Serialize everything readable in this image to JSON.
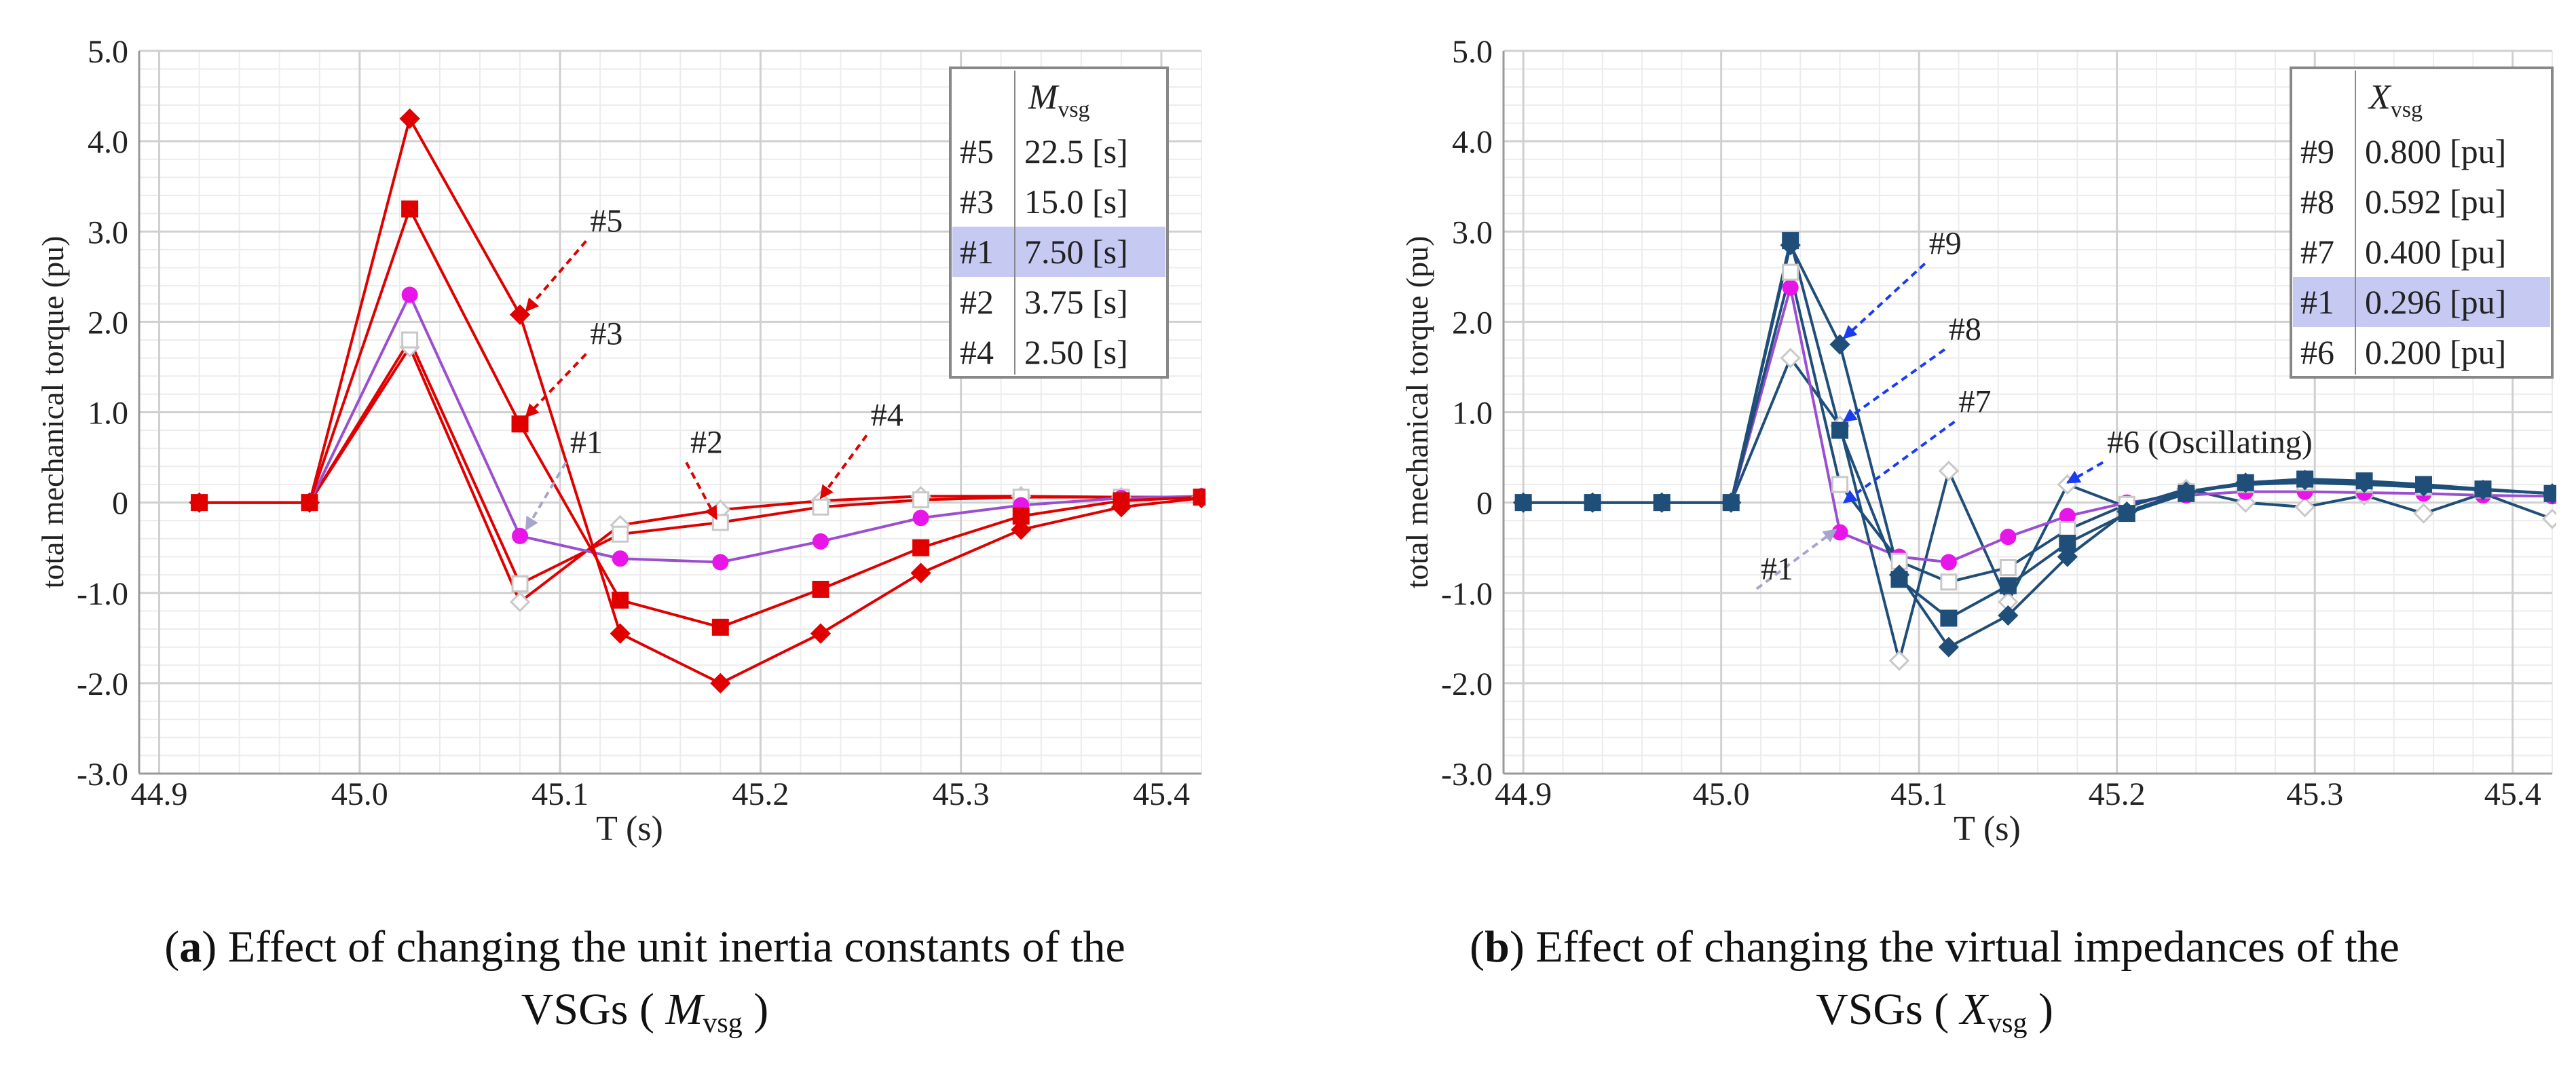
{
  "figure": {
    "panel_a": {
      "caption": {
        "letter": "a",
        "text": "Effect of changing the unit inertia constants of the",
        "line2_start": "VSGs (",
        "symbol": "M",
        "subscript": "vsg",
        "line2_end": ")"
      },
      "chart_data": {
        "type": "line",
        "xlabel": "T (s)",
        "ylabel": "total mechanical torque (pu)",
        "xlim": [
          44.89,
          45.42
        ],
        "ylim": [
          -3.0,
          5.0
        ],
        "xticks": [
          "44.9",
          "45.0",
          "45.1",
          "45.2",
          "45.3",
          "45.4"
        ],
        "yticks": [
          "5.0",
          "4.0",
          "3.0",
          "2.0",
          "1.0",
          "0",
          "-1.0",
          "-2.0",
          "-3.0"
        ],
        "legend": {
          "title": "M",
          "title_sub": "vsg",
          "placement": "top-right",
          "rows": [
            {
              "id": "#5",
              "value": "22.5 [s]",
              "highlight": false
            },
            {
              "id": "#3",
              "value": "15.0 [s]",
              "highlight": false
            },
            {
              "id": "#1",
              "value": "7.50 [s]",
              "highlight": true
            },
            {
              "id": "#2",
              "value": "3.75 [s]",
              "highlight": false
            },
            {
              "id": "#4",
              "value": "2.50 [s]",
              "highlight": false
            }
          ]
        },
        "x": [
          44.92,
          44.975,
          45.025,
          45.08,
          45.13,
          45.18,
          45.23,
          45.28,
          45.33,
          45.38,
          45.42
        ],
        "series": [
          {
            "name": "#5",
            "color": "#e00000",
            "marker": "diamond",
            "filled": true,
            "values": [
              0,
              0,
              4.25,
              2.08,
              -1.45,
              -2.0,
              -1.45,
              -0.78,
              -0.3,
              -0.05,
              0.05
            ]
          },
          {
            "name": "#3",
            "color": "#e00000",
            "marker": "square",
            "filled": true,
            "values": [
              0,
              0,
              3.25,
              0.87,
              -1.08,
              -1.38,
              -0.96,
              -0.5,
              -0.15,
              0.02,
              0.06
            ]
          },
          {
            "name": "#1",
            "color": "#9b4fd0",
            "marker": "circle",
            "filled": true,
            "marker_color": "#e815e8",
            "values": [
              0,
              0,
              2.3,
              -0.37,
              -0.62,
              -0.66,
              -0.43,
              -0.17,
              -0.03,
              0.05,
              0.07
            ]
          },
          {
            "name": "#2",
            "color": "#e00000",
            "marker": "square",
            "filled": false,
            "values": [
              0,
              0,
              1.8,
              -0.9,
              -0.35,
              -0.22,
              -0.05,
              0.03,
              0.06,
              0.06,
              0.06
            ]
          },
          {
            "name": "#4",
            "color": "#e00000",
            "marker": "diamond",
            "filled": false,
            "values": [
              0,
              0,
              1.72,
              -1.1,
              -0.25,
              -0.08,
              0.02,
              0.07,
              0.07,
              0.06,
              0.06
            ]
          }
        ],
        "annotations": [
          {
            "text": "#5",
            "tx": 45.115,
            "ty": 3.0,
            "ax": 45.083,
            "ay": 2.12,
            "color": "#e00000"
          },
          {
            "text": "#3",
            "tx": 45.115,
            "ty": 1.75,
            "ax": 45.083,
            "ay": 0.95,
            "color": "#e00000"
          },
          {
            "text": "#1",
            "tx": 45.105,
            "ty": 0.55,
            "ax": 45.083,
            "ay": -0.3,
            "color": "#a6a6cc"
          },
          {
            "text": "#2",
            "tx": 45.165,
            "ty": 0.55,
            "ax": 45.178,
            "ay": -0.18,
            "color": "#e00000"
          },
          {
            "text": "#4",
            "tx": 45.255,
            "ty": 0.85,
            "ax": 45.23,
            "ay": 0.05,
            "color": "#e00000"
          }
        ]
      }
    },
    "panel_b": {
      "caption": {
        "letter": "b",
        "text": "Effect of changing the virtual impedances of the",
        "line2_start": "VSGs (",
        "symbol": "X",
        "subscript": "vsg",
        "line2_end": ")"
      },
      "chart_data": {
        "type": "line",
        "xlabel": "T (s)",
        "ylabel": "total mechanical torque (pu)",
        "xlim": [
          44.89,
          45.42
        ],
        "ylim": [
          -3.0,
          5.0
        ],
        "xticks": [
          "44.9",
          "45.0",
          "45.1",
          "45.2",
          "45.3",
          "45.4"
        ],
        "yticks": [
          "5.0",
          "4.0",
          "3.0",
          "2.0",
          "1.0",
          "0",
          "-1.0",
          "-2.0",
          "-3.0"
        ],
        "legend": {
          "title": "X",
          "title_sub": "vsg",
          "placement": "top-right",
          "rows": [
            {
              "id": "#9",
              "value": "0.800 [pu]",
              "highlight": false
            },
            {
              "id": "#8",
              "value": "0.592 [pu]",
              "highlight": false
            },
            {
              "id": "#7",
              "value": "0.400 [pu]",
              "highlight": false
            },
            {
              "id": "#1",
              "value": "0.296 [pu]",
              "highlight": true
            },
            {
              "id": "#6",
              "value": "0.200 [pu]",
              "highlight": false
            }
          ]
        },
        "x": [
          44.9,
          44.935,
          44.97,
          45.005,
          45.035,
          45.06,
          45.09,
          45.115,
          45.145,
          45.175,
          45.205,
          45.235,
          45.265,
          45.295,
          45.325,
          45.355,
          45.385,
          45.42
        ],
        "series": [
          {
            "name": "#9",
            "color": "#1f4e79",
            "marker": "diamond",
            "filled": true,
            "values": [
              0,
              0,
              0,
              0,
              2.85,
              1.75,
              -0.8,
              -1.6,
              -1.25,
              -0.6,
              -0.1,
              0.12,
              0.22,
              0.25,
              0.22,
              0.18,
              0.14,
              0.1
            ]
          },
          {
            "name": "#8",
            "color": "#1f4e79",
            "marker": "square",
            "filled": true,
            "values": [
              0,
              0,
              0,
              0,
              2.9,
              0.8,
              -0.85,
              -1.28,
              -0.92,
              -0.45,
              -0.12,
              0.1,
              0.22,
              0.26,
              0.24,
              0.2,
              0.15,
              0.1
            ]
          },
          {
            "name": "#7",
            "color": "#1f4e79",
            "marker": "square",
            "filled": false,
            "values": [
              0,
              0,
              0,
              0,
              2.55,
              0.2,
              -0.65,
              -0.88,
              -0.72,
              -0.3,
              -0.02,
              0.12,
              0.2,
              0.22,
              0.2,
              0.17,
              0.14,
              0.1
            ]
          },
          {
            "name": "#1",
            "color": "#9b4fd0",
            "marker": "circle",
            "filled": true,
            "marker_color": "#e815e8",
            "values": [
              0,
              0,
              0,
              0,
              2.38,
              -0.33,
              -0.6,
              -0.66,
              -0.38,
              -0.15,
              0.0,
              0.08,
              0.12,
              0.12,
              0.11,
              0.1,
              0.08,
              0.07
            ]
          },
          {
            "name": "#6",
            "color": "#1f4e79",
            "marker": "diamond",
            "filled": false,
            "values": [
              0,
              0,
              0,
              0,
              1.6,
              0.85,
              -1.75,
              0.35,
              -1.1,
              0.2,
              -0.05,
              0.15,
              0.0,
              -0.05,
              0.08,
              -0.12,
              0.1,
              -0.18
            ]
          }
        ],
        "annotations": [
          {
            "text": "#9",
            "tx": 45.105,
            "ty": 2.75,
            "ax": 45.062,
            "ay": 1.82,
            "color": "#1a3cf0"
          },
          {
            "text": "#8",
            "tx": 45.115,
            "ty": 1.8,
            "ax": 45.062,
            "ay": 0.9,
            "color": "#1a3cf0"
          },
          {
            "text": "#7",
            "tx": 45.12,
            "ty": 1.0,
            "ax": 45.062,
            "ay": 0.0,
            "color": "#1a3cf0"
          },
          {
            "text": "#6 (Oscillating)",
            "tx": 45.195,
            "ty": 0.55,
            "ax": 45.175,
            "ay": 0.22,
            "color": "#1a3cf0"
          },
          {
            "text": "#1",
            "tx": 45.02,
            "ty": -0.85,
            "ax": 45.058,
            "ay": -0.3,
            "color": "#a6a6cc"
          }
        ]
      }
    }
  }
}
